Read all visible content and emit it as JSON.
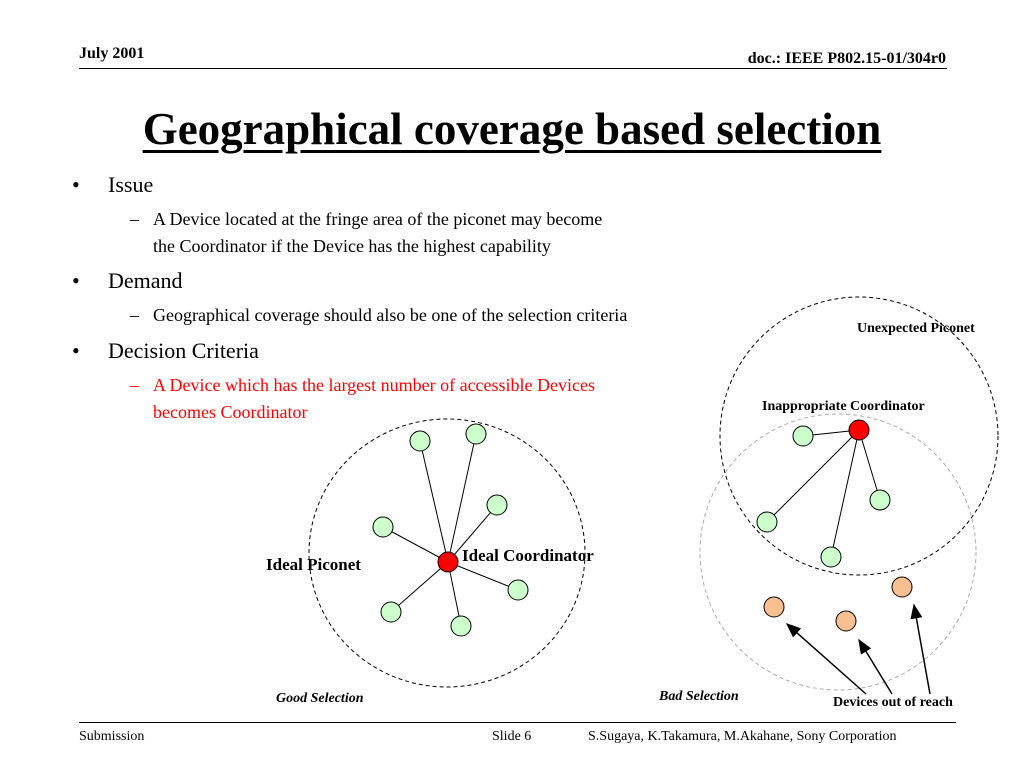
{
  "header": {
    "date": "July 2001",
    "doc_id": "doc.: IEEE P802.15-01/304r0"
  },
  "title": "Geographical coverage based selection",
  "bullets": [
    {
      "label": "Issue",
      "sub": [
        "A Device located at the fringe area of the piconet may become",
        "the Coordinator if the Device has the highest capability"
      ]
    },
    {
      "label": "Demand",
      "sub": [
        "Geographical coverage should also be one of the selection criteria"
      ]
    },
    {
      "label": "Decision Criteria",
      "sub": [
        "A Device which has the largest number of accessible Devices",
        "becomes Coordinator"
      ]
    }
  ],
  "diagram": {
    "ideal_piconet_label": "Ideal Piconet",
    "ideal_coordinator_label": "Ideal Coordinator",
    "good_selection_label": "Good Selection",
    "unexpected_piconet_label": "Unexpected Piconet",
    "inappropriate_coordinator_label": "Inappropriate Coordinator",
    "bad_selection_label": "Bad Selection",
    "devices_out_of_reach_label": "Devices out of reach",
    "colors": {
      "coordinator": "#ff0000",
      "device": "#ccffcc",
      "unreachable_device": "#f8c090",
      "emphasis_text": "#ff0000"
    }
  },
  "footer": {
    "left": "Submission",
    "slide": "Slide 6",
    "authors": "S.Sugaya, K.Takamura, M.Akahane, Sony Corporation"
  }
}
